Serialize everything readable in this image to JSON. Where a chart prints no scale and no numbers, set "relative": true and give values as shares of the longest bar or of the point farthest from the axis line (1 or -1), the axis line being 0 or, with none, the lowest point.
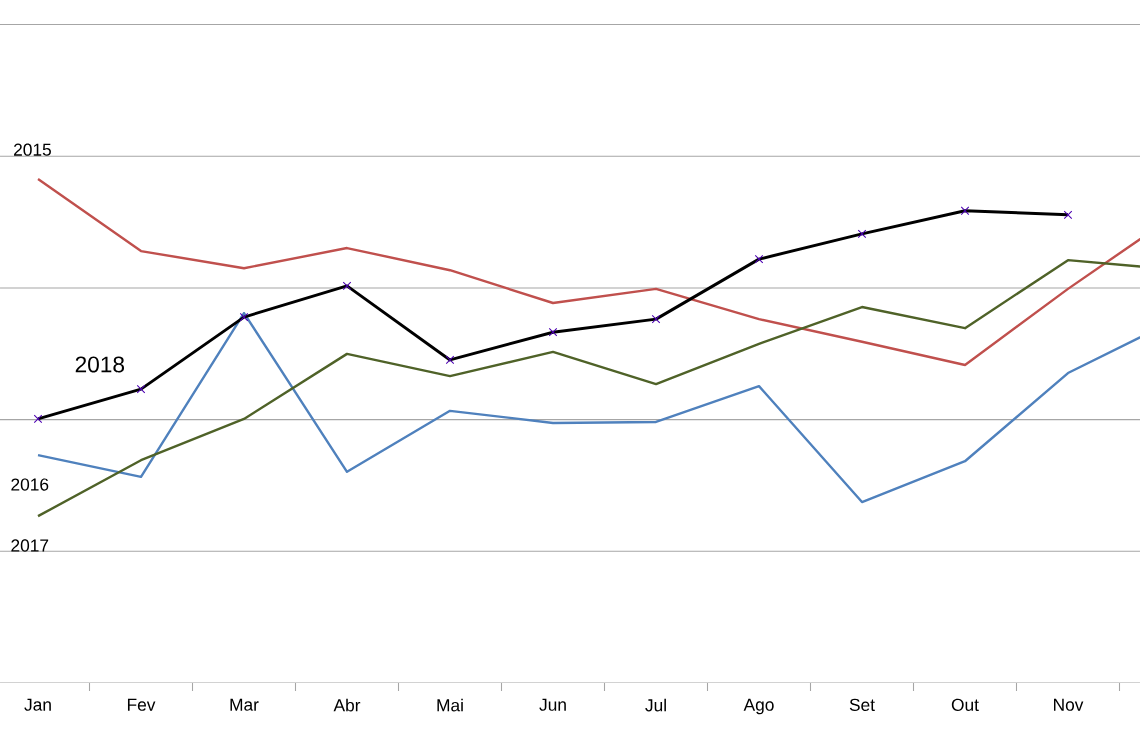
{
  "chart_data": {
    "type": "line",
    "relative": true,
    "grid": "y",
    "marker": "none",
    "line_style": "solid",
    "categories": [
      "Jan",
      "Fev",
      "Mar",
      "Abr",
      "Mai",
      "Jun",
      "Jul",
      "Ago",
      "Set",
      "Out",
      "Nov",
      null
    ],
    "series": [
      {
        "name": "2015",
        "color": "#c0504d",
        "values": [
          1.0,
          0.857,
          0.823,
          0.863,
          0.819,
          0.754,
          0.782,
          0.722,
          0.677,
          0.631,
          0.782,
          0.923
        ]
      },
      {
        "name": "2016",
        "color": "#4f81bd",
        "values": [
          0.452,
          0.409,
          0.734,
          0.419,
          0.54,
          0.516,
          0.518,
          0.589,
          0.359,
          0.44,
          0.615,
          0.716
        ]
      },
      {
        "name": "2017",
        "color": "#4f6228",
        "values": [
          0.331,
          0.442,
          0.524,
          0.653,
          0.609,
          0.657,
          0.593,
          0.673,
          0.746,
          0.704,
          0.839,
          0.821
        ]
      },
      {
        "name": "2018",
        "color": "#000000",
        "marker": "cross",
        "values": [
          0.524,
          0.583,
          0.726,
          0.788,
          0.641,
          0.696,
          0.722,
          0.841,
          0.891,
          0.937,
          0.929,
          null
        ]
      }
    ]
  }
}
